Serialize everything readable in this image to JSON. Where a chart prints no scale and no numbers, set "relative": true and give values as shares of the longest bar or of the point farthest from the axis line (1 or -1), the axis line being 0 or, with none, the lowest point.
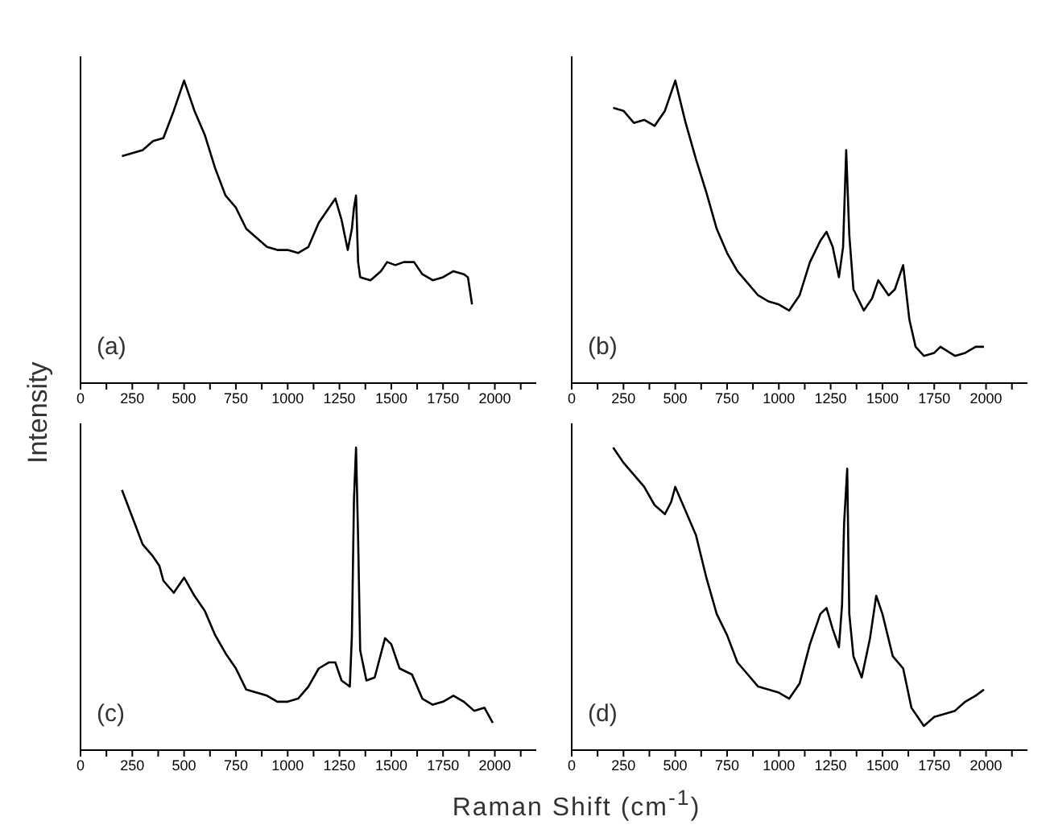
{
  "chart_data": [
    {
      "type": "line",
      "annotations": [
        "(a)"
      ],
      "ylabel": "Intensity",
      "xlabel": "Raman Shift (cm$^{-1}$)",
      "relative": true,
      "marker": "none",
      "color": "#000000",
      "xlim": [
        0,
        2200
      ],
      "xticks": [
        0,
        {
          "value": 125,
          "label": null
        },
        250,
        {
          "value": 375,
          "label": null
        },
        500,
        {
          "value": 625,
          "label": null
        },
        750,
        {
          "value": 875,
          "label": null
        },
        1000,
        {
          "value": 1125,
          "label": null
        },
        1250,
        {
          "value": 1375,
          "label": null
        },
        1500,
        {
          "value": 1625,
          "label": null
        },
        1750,
        {
          "value": 1875,
          "label": null
        },
        2000,
        {
          "value": 2125,
          "label": null
        }
      ],
      "x": [
        200,
        250,
        300,
        350,
        400,
        450,
        500,
        550,
        600,
        650,
        700,
        750,
        800,
        850,
        900,
        950,
        1000,
        1050,
        1100,
        1150,
        1200,
        1230,
        1260,
        1290,
        1310,
        1320,
        1330,
        1340,
        1350,
        1400,
        1450,
        1480,
        1520,
        1560,
        1610,
        1650,
        1700,
        1750,
        1800,
        1850,
        1870,
        1890
      ],
      "values": [
        0.75,
        0.76,
        0.77,
        0.8,
        0.81,
        0.9,
        1.0,
        0.9,
        0.82,
        0.71,
        0.62,
        0.58,
        0.51,
        0.48,
        0.45,
        0.44,
        0.44,
        0.43,
        0.45,
        0.53,
        0.58,
        0.61,
        0.54,
        0.44,
        0.51,
        0.58,
        0.62,
        0.4,
        0.35,
        0.34,
        0.37,
        0.4,
        0.39,
        0.4,
        0.4,
        0.36,
        0.34,
        0.35,
        0.37,
        0.36,
        0.35,
        0.26
      ]
    },
    {
      "type": "line",
      "annotations": [
        "(b)"
      ],
      "relative": true,
      "marker": "none",
      "color": "#000000",
      "xlim": [
        0,
        2200
      ],
      "xticks": [
        0,
        {
          "value": 125,
          "label": null
        },
        250,
        {
          "value": 375,
          "label": null
        },
        500,
        {
          "value": 625,
          "label": null
        },
        750,
        {
          "value": 875,
          "label": null
        },
        1000,
        {
          "value": 1125,
          "label": null
        },
        1250,
        {
          "value": 1375,
          "label": null
        },
        1500,
        {
          "value": 1625,
          "label": null
        },
        1750,
        {
          "value": 1875,
          "label": null
        },
        2000,
        {
          "value": 2125,
          "label": null
        }
      ],
      "x": [
        200,
        250,
        300,
        350,
        400,
        450,
        500,
        550,
        600,
        650,
        700,
        750,
        800,
        850,
        900,
        950,
        1000,
        1050,
        1100,
        1150,
        1200,
        1230,
        1260,
        1290,
        1310,
        1325,
        1340,
        1360,
        1410,
        1450,
        1480,
        1530,
        1560,
        1600,
        1630,
        1660,
        1700,
        1750,
        1780,
        1850,
        1900,
        1950,
        1990
      ],
      "values": [
        0.91,
        0.9,
        0.86,
        0.87,
        0.85,
        0.9,
        1.0,
        0.86,
        0.74,
        0.63,
        0.51,
        0.43,
        0.37,
        0.33,
        0.29,
        0.27,
        0.26,
        0.24,
        0.29,
        0.4,
        0.47,
        0.5,
        0.45,
        0.35,
        0.45,
        0.77,
        0.49,
        0.31,
        0.24,
        0.28,
        0.34,
        0.29,
        0.31,
        0.39,
        0.21,
        0.12,
        0.09,
        0.1,
        0.12,
        0.09,
        0.1,
        0.12,
        0.12
      ]
    },
    {
      "type": "line",
      "annotations": [
        "(c)"
      ],
      "relative": true,
      "marker": "none",
      "color": "#000000",
      "xlim": [
        0,
        2200
      ],
      "xticks": [
        0,
        {
          "value": 125,
          "label": null
        },
        250,
        {
          "value": 375,
          "label": null
        },
        500,
        {
          "value": 625,
          "label": null
        },
        750,
        {
          "value": 875,
          "label": null
        },
        1000,
        {
          "value": 1125,
          "label": null
        },
        1250,
        {
          "value": 1375,
          "label": null
        },
        1500,
        {
          "value": 1625,
          "label": null
        },
        1750,
        {
          "value": 1875,
          "label": null
        },
        2000,
        {
          "value": 2125,
          "label": null
        }
      ],
      "x": [
        200,
        250,
        300,
        350,
        380,
        400,
        450,
        500,
        550,
        600,
        650,
        700,
        750,
        800,
        850,
        900,
        950,
        1000,
        1050,
        1100,
        1150,
        1200,
        1230,
        1260,
        1300,
        1310,
        1320,
        1330,
        1340,
        1350,
        1380,
        1420,
        1470,
        1500,
        1540,
        1600,
        1650,
        1700,
        1750,
        1800,
        1850,
        1900,
        1950,
        1990
      ],
      "values": [
        0.86,
        0.77,
        0.68,
        0.64,
        0.61,
        0.56,
        0.52,
        0.57,
        0.51,
        0.46,
        0.38,
        0.32,
        0.27,
        0.2,
        0.19,
        0.18,
        0.16,
        0.16,
        0.17,
        0.21,
        0.27,
        0.29,
        0.29,
        0.23,
        0.21,
        0.38,
        0.83,
        1.0,
        0.7,
        0.33,
        0.23,
        0.24,
        0.37,
        0.35,
        0.27,
        0.25,
        0.17,
        0.15,
        0.16,
        0.18,
        0.16,
        0.13,
        0.14,
        0.09
      ]
    },
    {
      "type": "line",
      "annotations": [
        "(d)"
      ],
      "relative": true,
      "marker": "none",
      "color": "#000000",
      "xlim": [
        0,
        2200
      ],
      "xticks": [
        0,
        {
          "value": 125,
          "label": null
        },
        250,
        {
          "value": 375,
          "label": null
        },
        500,
        {
          "value": 625,
          "label": null
        },
        750,
        {
          "value": 875,
          "label": null
        },
        1000,
        {
          "value": 1125,
          "label": null
        },
        1250,
        {
          "value": 1375,
          "label": null
        },
        1500,
        {
          "value": 1625,
          "label": null
        },
        1750,
        {
          "value": 1875,
          "label": null
        },
        2000,
        {
          "value": 2125,
          "label": null
        }
      ],
      "x": [
        200,
        250,
        300,
        350,
        400,
        450,
        480,
        500,
        550,
        600,
        650,
        700,
        750,
        800,
        850,
        900,
        950,
        1000,
        1050,
        1100,
        1150,
        1200,
        1230,
        1260,
        1290,
        1305,
        1315,
        1330,
        1340,
        1360,
        1400,
        1440,
        1470,
        1500,
        1550,
        1600,
        1640,
        1700,
        1750,
        1800,
        1850,
        1900,
        1950,
        1990
      ],
      "values": [
        1.0,
        0.95,
        0.91,
        0.87,
        0.81,
        0.78,
        0.82,
        0.87,
        0.79,
        0.71,
        0.57,
        0.45,
        0.38,
        0.29,
        0.25,
        0.21,
        0.2,
        0.19,
        0.17,
        0.22,
        0.35,
        0.45,
        0.47,
        0.4,
        0.34,
        0.48,
        0.75,
        0.93,
        0.45,
        0.31,
        0.24,
        0.37,
        0.51,
        0.45,
        0.31,
        0.27,
        0.14,
        0.08,
        0.11,
        0.12,
        0.13,
        0.16,
        0.18,
        0.2
      ]
    }
  ]
}
